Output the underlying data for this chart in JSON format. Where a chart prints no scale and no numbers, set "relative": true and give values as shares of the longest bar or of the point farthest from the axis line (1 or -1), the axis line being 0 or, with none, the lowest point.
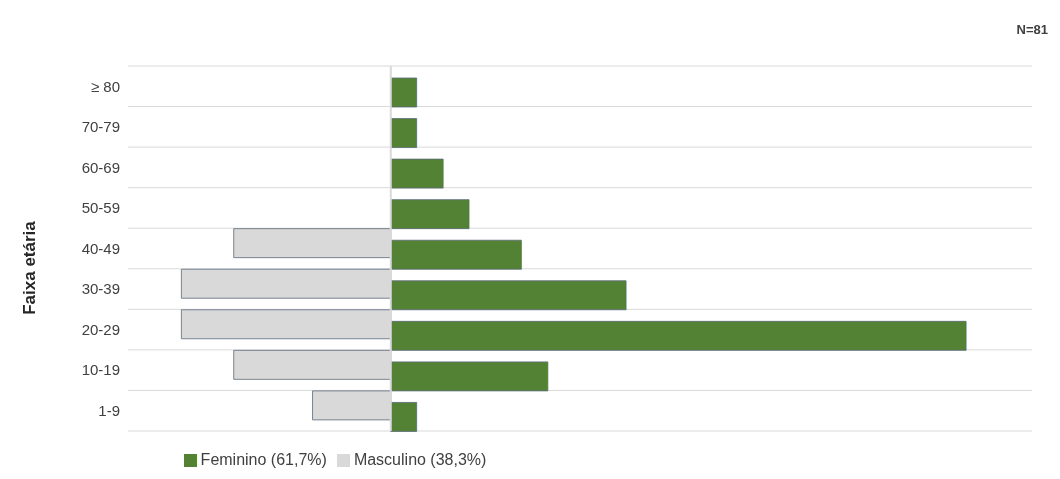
{
  "chart_data": {
    "type": "bar",
    "orientation": "horizontal",
    "relative": true,
    "ylabel": "Faixa etária",
    "categories": [
      "≥ 80",
      "70-79",
      "60-69",
      "50-59",
      "40-49",
      "30-39",
      "20-29",
      "10-19",
      "1-9"
    ],
    "series": [
      {
        "name": "Feminino (61,7%)",
        "color": "#548235",
        "values": [
          0.045,
          0.045,
          0.091,
          0.136,
          0.227,
          0.409,
          1,
          0.273,
          0.045
        ]
      },
      {
        "name": "Masculino (38,3%)",
        "color": "#d9d9d9",
        "values": [
          null,
          null,
          null,
          null,
          -0.273,
          -0.364,
          -0.364,
          -0.273,
          -0.136
        ]
      }
    ],
    "annotations": [
      "N=81"
    ],
    "grid": "y",
    "legend": "bottom"
  }
}
